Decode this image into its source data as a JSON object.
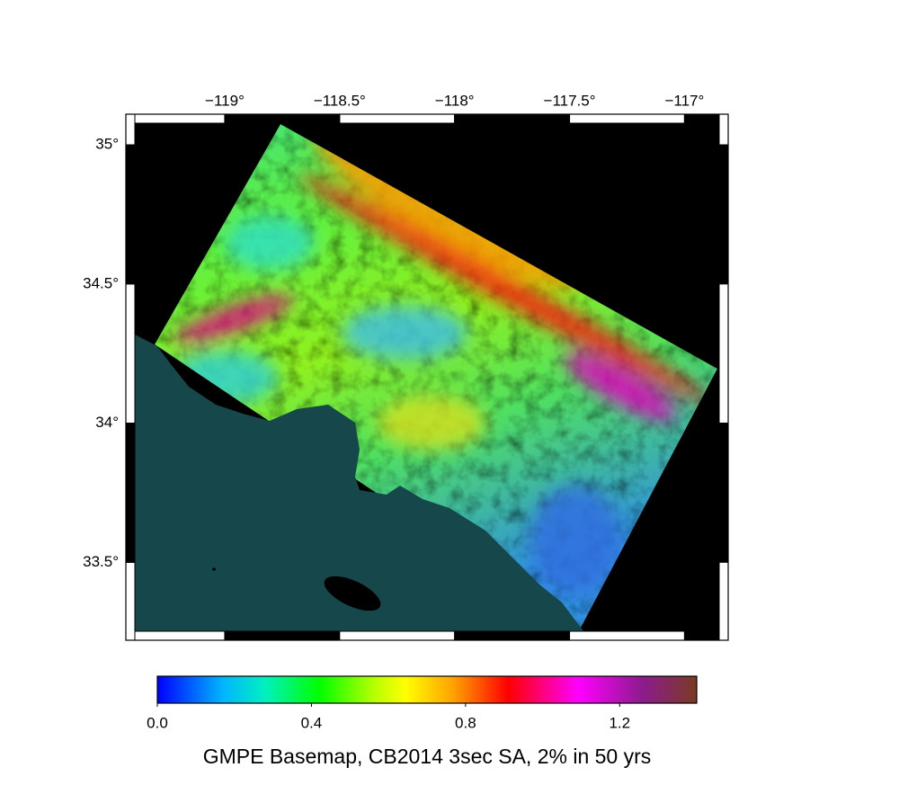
{
  "map": {
    "xlim": [
      -119.43,
      -116.81
    ],
    "ylim": [
      33.22,
      35.11
    ],
    "xticks": [
      {
        "value": -119,
        "label": "−119°"
      },
      {
        "value": -118.5,
        "label": "−118.5°"
      },
      {
        "value": -118,
        "label": "−118°"
      },
      {
        "value": -117.5,
        "label": "−117.5°"
      },
      {
        "value": -117,
        "label": "−117°"
      }
    ],
    "yticks": [
      {
        "value": 35,
        "label": "35°"
      },
      {
        "value": 34.5,
        "label": "34.5°"
      },
      {
        "value": 34,
        "label": "34°"
      },
      {
        "value": 33.5,
        "label": "33.5°"
      }
    ]
  },
  "colorbar": {
    "range": [
      0,
      1.4
    ],
    "ticks": [
      {
        "value": 0,
        "label": "0.0"
      },
      0.4,
      0.8,
      1.2
    ],
    "title": "GMPE Basemap, CB2014 3sec SA, 2% in 50 yrs"
  }
}
